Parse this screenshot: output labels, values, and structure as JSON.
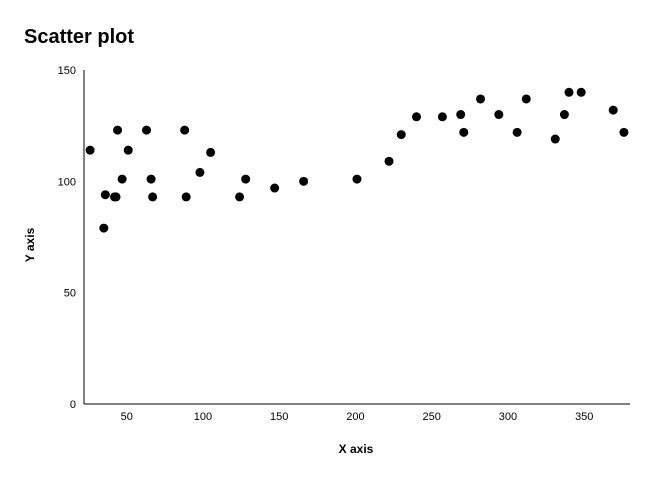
{
  "chart_data": {
    "type": "scatter",
    "title": "Scatter plot",
    "xlabel": "X axis",
    "ylabel": "Y axis",
    "xlim": [
      22,
      380
    ],
    "ylim": [
      0,
      150
    ],
    "xticks": [
      50,
      100,
      150,
      200,
      250,
      300,
      350
    ],
    "yticks": [
      0,
      50,
      100,
      150
    ],
    "grid": false,
    "legend": "none",
    "marker_color": "#000000",
    "points": [
      {
        "x": 26,
        "y": 114
      },
      {
        "x": 35,
        "y": 79
      },
      {
        "x": 36,
        "y": 94
      },
      {
        "x": 42,
        "y": 93
      },
      {
        "x": 43,
        "y": 93
      },
      {
        "x": 44,
        "y": 123
      },
      {
        "x": 47,
        "y": 101
      },
      {
        "x": 51,
        "y": 114
      },
      {
        "x": 63,
        "y": 123
      },
      {
        "x": 66,
        "y": 101
      },
      {
        "x": 67,
        "y": 93
      },
      {
        "x": 88,
        "y": 123
      },
      {
        "x": 89,
        "y": 93
      },
      {
        "x": 98,
        "y": 104
      },
      {
        "x": 105,
        "y": 113
      },
      {
        "x": 124,
        "y": 93
      },
      {
        "x": 128,
        "y": 101
      },
      {
        "x": 147,
        "y": 97
      },
      {
        "x": 166,
        "y": 100
      },
      {
        "x": 201,
        "y": 101
      },
      {
        "x": 222,
        "y": 109
      },
      {
        "x": 230,
        "y": 121
      },
      {
        "x": 240,
        "y": 129
      },
      {
        "x": 257,
        "y": 129
      },
      {
        "x": 269,
        "y": 130
      },
      {
        "x": 271,
        "y": 122
      },
      {
        "x": 282,
        "y": 137
      },
      {
        "x": 294,
        "y": 130
      },
      {
        "x": 306,
        "y": 122
      },
      {
        "x": 312,
        "y": 137
      },
      {
        "x": 331,
        "y": 119
      },
      {
        "x": 337,
        "y": 130
      },
      {
        "x": 340,
        "y": 140
      },
      {
        "x": 348,
        "y": 140
      },
      {
        "x": 369,
        "y": 132
      },
      {
        "x": 376,
        "y": 122
      }
    ]
  }
}
